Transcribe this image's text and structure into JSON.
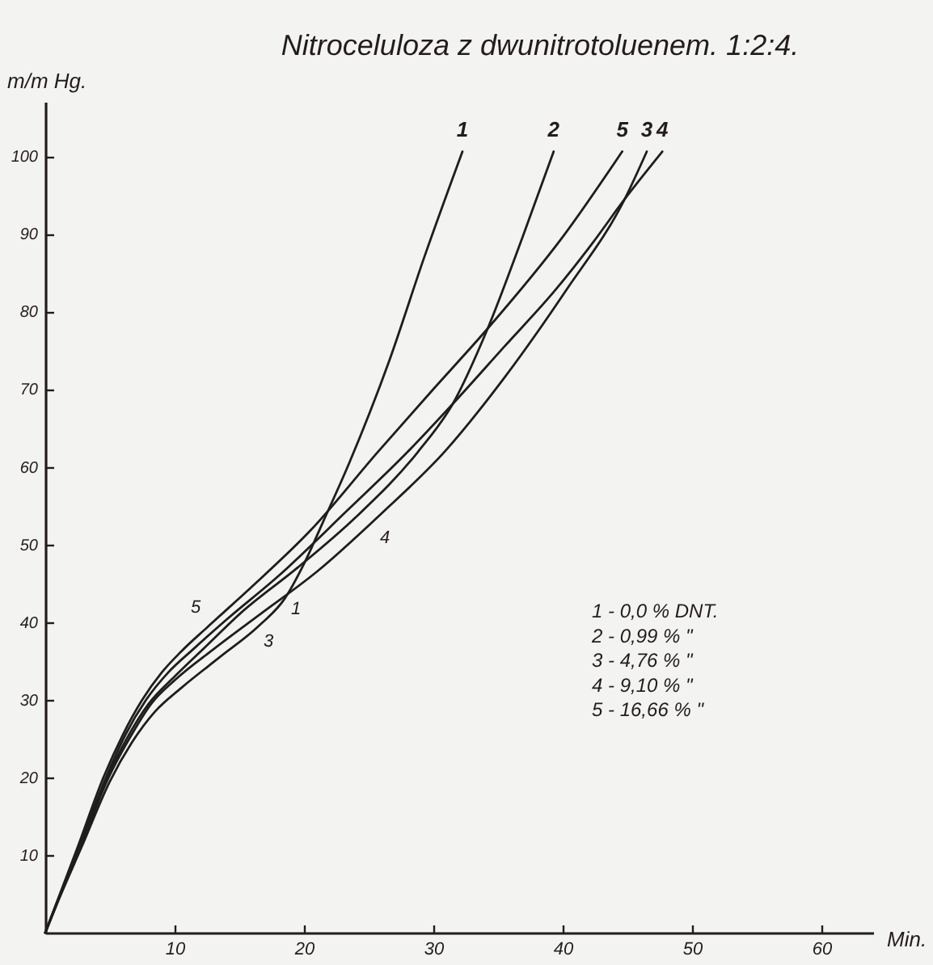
{
  "chart_data": {
    "type": "line",
    "title": "Nitroceluloza z dwunitrotoluenem. 1:2:4.",
    "xlabel": "Min.",
    "ylabel": "m/m Hg.",
    "series": [
      {
        "name": "1",
        "color": "#1e1e1e",
        "x": [
          0,
          1,
          2.8,
          5,
          6.7,
          8.5,
          10.5,
          13.5,
          16.5,
          18.5,
          20,
          21.5,
          23.5,
          26.6,
          29.3,
          32.25
        ],
        "values": [
          0,
          4.1,
          11,
          19.5,
          24.5,
          28.5,
          31.5,
          35.5,
          39.5,
          43,
          47.5,
          53,
          60.5,
          73.7,
          87,
          100.6
        ]
      },
      {
        "name": "2",
        "color": "#1e1e1e",
        "x": [
          0,
          1,
          2.6,
          4.8,
          6.3,
          8,
          10,
          12.5,
          15,
          19.5,
          24,
          28.8,
          31.5,
          34.2,
          36.9,
          39.3
        ],
        "values": [
          0,
          4.3,
          11,
          20,
          25,
          29.5,
          33,
          37,
          41,
          47,
          53.5,
          61.9,
          68.1,
          77.8,
          89.6,
          100.6
        ]
      },
      {
        "name": "3",
        "color": "#1e1e1e",
        "x": [
          0,
          1,
          2.7,
          4.9,
          6.5,
          8.2,
          10,
          13,
          16.6,
          21,
          26,
          30.9,
          35.5,
          40.25,
          44.8,
          46.5
        ],
        "values": [
          0,
          4.2,
          11,
          20,
          25,
          29.5,
          32.5,
          36.5,
          41,
          46.5,
          54,
          62,
          71.5,
          82.7,
          94.5,
          100.6
        ]
      },
      {
        "name": "4",
        "color": "#1e1e1e",
        "x": [
          0,
          1,
          2.6,
          4.7,
          6.2,
          7.8,
          9.5,
          11.5,
          14,
          18,
          23.3,
          28,
          31.5,
          35.5,
          39.4,
          42.3,
          44.8,
          47.7
        ],
        "values": [
          0,
          4.3,
          11,
          20,
          25.5,
          30,
          33.5,
          36.6,
          40.3,
          45.9,
          54.3,
          61.9,
          68.1,
          75.5,
          82.7,
          88.8,
          94.5,
          100.6
        ]
      },
      {
        "name": "5",
        "color": "#1e1e1e",
        "x": [
          0,
          1,
          2.5,
          4.5,
          6,
          7.5,
          9,
          10.5,
          12.5,
          16,
          20.5,
          25.7,
          30,
          34.2,
          40,
          44.6
        ],
        "values": [
          0,
          4.4,
          11,
          20,
          25.5,
          30,
          33.5,
          36.2,
          39.3,
          44.6,
          51.8,
          61.9,
          70,
          77.8,
          89.6,
          100.6
        ]
      }
    ],
    "xlim": [
      0,
      64
    ],
    "ylim": [
      0,
      107
    ],
    "xticks": [
      10,
      20,
      30,
      40,
      50,
      60
    ],
    "yticks": [
      10,
      20,
      30,
      40,
      50,
      60,
      70,
      80,
      90,
      100
    ],
    "grid": false,
    "legend": false,
    "marker": "none",
    "line_style": "solid",
    "annotations": [
      "5",
      "3",
      "1",
      "4",
      "1 - 0,0 % DNT.",
      "2 - 0,99 %  \"",
      "3 - 4,76 %  \"",
      "4 - 9,10 %  \"",
      "5 - 16,66 %  \""
    ]
  }
}
